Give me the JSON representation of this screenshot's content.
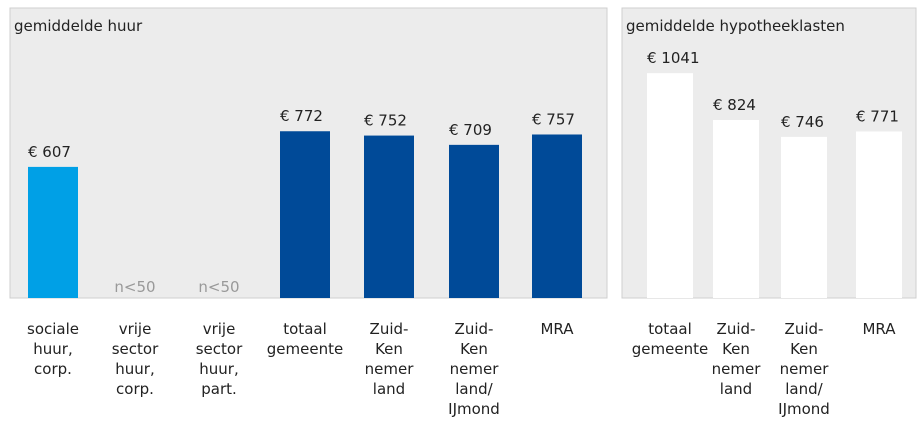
{
  "chart_data": [
    {
      "type": "bar",
      "title": "gemiddelde huur",
      "categories": [
        "sociale\nhuur,\ncorp.",
        "vrije\nsector\nhuur,\ncorp.",
        "vrije\nsector\nhuur,\npart.",
        "totaal\ngemeente",
        "Zuid-\nKen\nnemer\nland",
        "Zuid-\nKen\nnemer\nland/\nIJmond",
        "MRA"
      ],
      "values": [
        607,
        null,
        null,
        772,
        752,
        709,
        757
      ],
      "value_labels": [
        "€ 607",
        "n<50",
        "n<50",
        "€ 772",
        "€ 752",
        "€ 709",
        "€ 757"
      ],
      "colors": [
        "#00a0e6",
        "#004a98",
        "#004a98",
        "#004a98",
        "#004a98",
        "#004a98",
        "#004a98"
      ]
    },
    {
      "type": "bar",
      "title": "gemiddelde hypotheeklasten",
      "categories": [
        "totaal\ngemeente",
        "Zuid-\nKen\nnemer\nland",
        "Zuid-\nKen\nnemer\nland/\nIJmond",
        "MRA"
      ],
      "values": [
        1041,
        824,
        746,
        771
      ],
      "value_labels": [
        "€ 1041",
        "€ 824",
        "€ 746",
        "€ 771"
      ],
      "colors": [
        "#ffffff",
        "#ffffff",
        "#ffffff",
        "#ffffff"
      ]
    }
  ]
}
